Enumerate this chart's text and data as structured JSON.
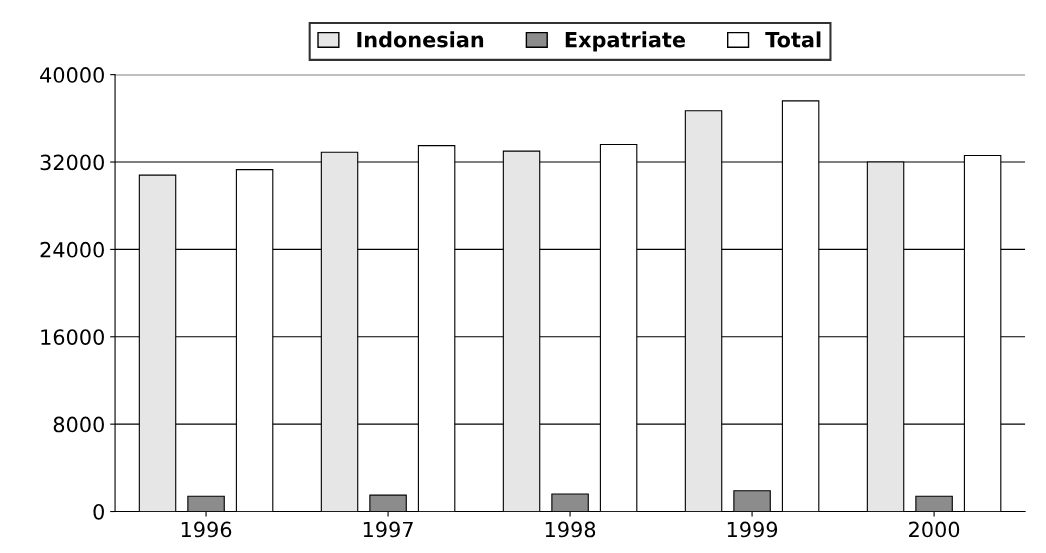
{
  "chart_data": {
    "type": "bar",
    "categories": [
      "1996",
      "1997",
      "1998",
      "1999",
      "2000"
    ],
    "series": [
      {
        "name": "Indonesian",
        "color": "#e6e6e6",
        "values": [
          30800,
          32900,
          33000,
          36700,
          32000
        ]
      },
      {
        "name": "Expatriate",
        "color": "#8c8c8c",
        "values": [
          1400,
          1500,
          1600,
          1900,
          1400
        ]
      },
      {
        "name": "Total",
        "color": "#ffffff",
        "values": [
          31300,
          33500,
          33600,
          37600,
          32600
        ]
      }
    ],
    "ylim": [
      0,
      40000
    ],
    "yticks": [
      0,
      8000,
      16000,
      24000,
      32000,
      40000
    ],
    "grid": "y",
    "legend": "top"
  }
}
